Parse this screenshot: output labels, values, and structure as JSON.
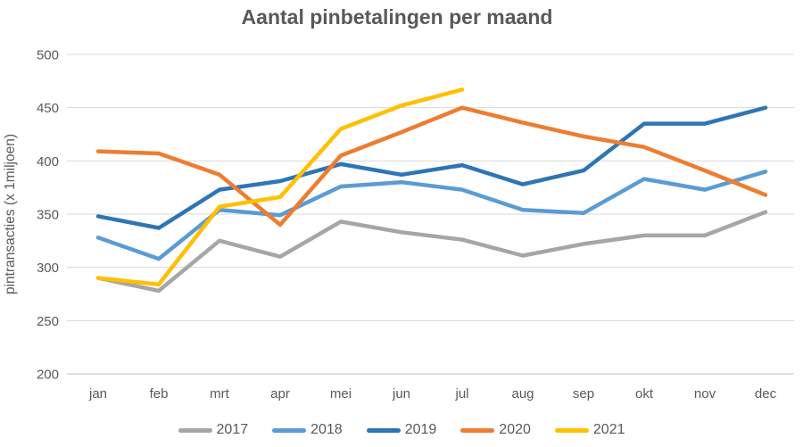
{
  "chart_data": {
    "type": "line",
    "title": "Aantal pinbetalingen per maand",
    "xlabel": "",
    "ylabel": "pintransacties (x 1miljoen)",
    "categories": [
      "jan",
      "feb",
      "mrt",
      "apr",
      "mei",
      "jun",
      "jul",
      "aug",
      "sep",
      "okt",
      "nov",
      "dec"
    ],
    "ylim": [
      200,
      500
    ],
    "yticks": [
      500,
      450,
      400,
      350,
      300,
      250,
      200
    ],
    "grid": true,
    "legend_position": "bottom",
    "series": [
      {
        "name": "2017",
        "color": "#A6A6A6",
        "values": [
          290,
          278,
          325,
          310,
          343,
          333,
          326,
          311,
          322,
          330,
          330,
          352
        ]
      },
      {
        "name": "2018",
        "color": "#5B9BD5",
        "values": [
          328,
          308,
          354,
          349,
          376,
          380,
          373,
          354,
          351,
          383,
          373,
          390
        ]
      },
      {
        "name": "2019",
        "color": "#2E75B6",
        "values": [
          348,
          337,
          373,
          381,
          397,
          387,
          396,
          378,
          391,
          435,
          435,
          450
        ]
      },
      {
        "name": "2020",
        "color": "#ED7D31",
        "values": [
          409,
          407,
          387,
          340,
          405,
          427,
          450,
          436,
          423,
          413,
          391,
          368
        ]
      },
      {
        "name": "2021",
        "color": "#FFC000",
        "values": [
          290,
          284,
          357,
          366,
          430,
          452,
          467,
          null,
          null,
          null,
          null,
          null
        ]
      }
    ]
  },
  "style": {
    "gridline_color": "#D9D9D9",
    "axis_line_color": "#BFBFBF",
    "text_color": "#595959",
    "background": "#FFFFFF",
    "line_width": 4.5
  }
}
